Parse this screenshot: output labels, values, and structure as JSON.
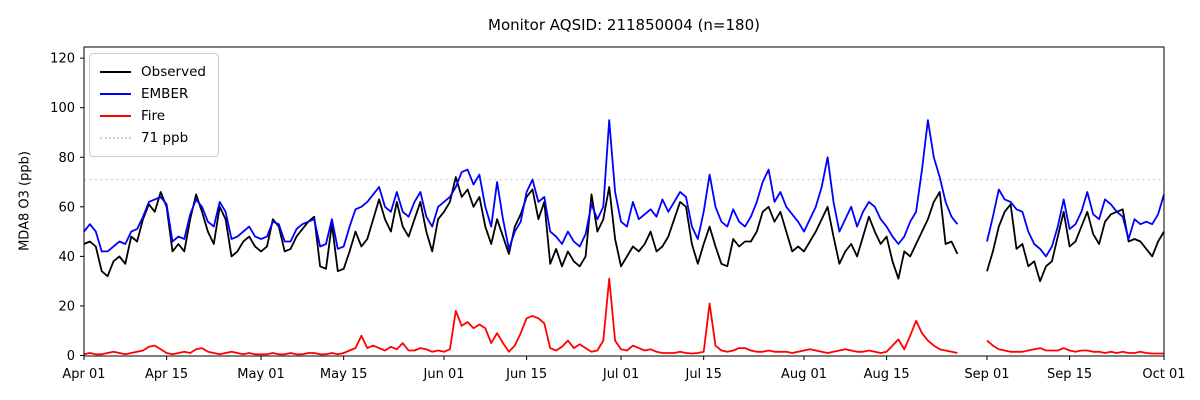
{
  "title": "Monitor AQSID: 211850004 (n=180)",
  "ylabel": "MDA8 O3 (ppb)",
  "legend": {
    "position": "upper left",
    "items": [
      {
        "label": "Observed",
        "color": "#000000",
        "style": "solid"
      },
      {
        "label": "EMBER",
        "color": "#0000ff",
        "style": "solid"
      },
      {
        "label": "Fire",
        "color": "#ff0000",
        "style": "solid"
      },
      {
        "label": "71 ppb",
        "color": "#d3d3d3",
        "style": "dotted"
      }
    ]
  },
  "chart_data": {
    "type": "line",
    "title": "Monitor AQSID: 211850004 (n=180)",
    "xlabel": "",
    "ylabel": "MDA8 O3 (ppb)",
    "grid": false,
    "background": "#ffffff",
    "n_points": 180,
    "x_unit": "day index from Apr 01",
    "x_range_days": [
      0,
      183
    ],
    "x_ticks": [
      {
        "label": "Apr 01",
        "day": 0
      },
      {
        "label": "Apr 15",
        "day": 14
      },
      {
        "label": "May 01",
        "day": 30
      },
      {
        "label": "May 15",
        "day": 44
      },
      {
        "label": "Jun 01",
        "day": 61
      },
      {
        "label": "Jun 15",
        "day": 75
      },
      {
        "label": "Jul 01",
        "day": 91
      },
      {
        "label": "Jul 15",
        "day": 105
      },
      {
        "label": "Aug 01",
        "day": 122
      },
      {
        "label": "Aug 15",
        "day": 136
      },
      {
        "label": "Sep 01",
        "day": 153
      },
      {
        "label": "Sep 15",
        "day": 167
      },
      {
        "label": "Oct 01",
        "day": 183
      }
    ],
    "y_ticks": [
      0,
      20,
      40,
      60,
      80,
      100,
      120
    ],
    "ylim": [
      -0.2,
      124.5
    ],
    "threshold": {
      "label": "71 ppb",
      "value": 71,
      "color": "#d3d3d3",
      "style": "dotted"
    },
    "data_gap": "Aug 28 - Aug 31 (no data, lines broken)",
    "series": [
      {
        "name": "Observed",
        "color": "#000000",
        "values": [
          45,
          46,
          44,
          34,
          32,
          38,
          40,
          37,
          48,
          46,
          55,
          61,
          58,
          66,
          60,
          42,
          45,
          42,
          55,
          65,
          58,
          50,
          45,
          60,
          55,
          40,
          42,
          46,
          48,
          44,
          42,
          44,
          55,
          52,
          42,
          43,
          48,
          51,
          54,
          56,
          36,
          35,
          53,
          34,
          35,
          42,
          50,
          44,
          47,
          55,
          63,
          55,
          50,
          62,
          52,
          48,
          55,
          62,
          50,
          42,
          55,
          58,
          62,
          72,
          64,
          67,
          60,
          64,
          52,
          45,
          55,
          48,
          41,
          52,
          57,
          64,
          67,
          55,
          62,
          37,
          43,
          36,
          42,
          38,
          36,
          40,
          65,
          50,
          55,
          68,
          47,
          36,
          40,
          44,
          42,
          45,
          50,
          42,
          44,
          48,
          55,
          62,
          60,
          45,
          37,
          45,
          52,
          44,
          37,
          36,
          47,
          44,
          46,
          46,
          50,
          58,
          60,
          54,
          58,
          50,
          42,
          44,
          42,
          46,
          50,
          55,
          60,
          48,
          37,
          42,
          45,
          40,
          48,
          56,
          50,
          45,
          48,
          38,
          31,
          42,
          40,
          45,
          50,
          55,
          62,
          66,
          45,
          46,
          41,
          null,
          null,
          null,
          null,
          34,
          42,
          52,
          58,
          61,
          43,
          45,
          36,
          38,
          30,
          36,
          38,
          48,
          58,
          44,
          46,
          52,
          58,
          49,
          45,
          54,
          57,
          58,
          59,
          46,
          47,
          46,
          43,
          40,
          46,
          50
        ]
      },
      {
        "name": "EMBER",
        "color": "#0000ff",
        "values": [
          50,
          53,
          50,
          42,
          42,
          44,
          46,
          45,
          50,
          51,
          56,
          62,
          63,
          64,
          61,
          46,
          48,
          47,
          57,
          63,
          60,
          54,
          52,
          62,
          58,
          47,
          48,
          50,
          52,
          48,
          47,
          48,
          54,
          53,
          46,
          46,
          51,
          53,
          54,
          55,
          44,
          45,
          55,
          43,
          44,
          52,
          59,
          60,
          62,
          65,
          68,
          60,
          58,
          66,
          58,
          56,
          62,
          66,
          56,
          52,
          60,
          62,
          64,
          68,
          74,
          75,
          69,
          73,
          60,
          52,
          70,
          55,
          43,
          50,
          54,
          66,
          71,
          62,
          64,
          50,
          48,
          45,
          50,
          46,
          44,
          49,
          61,
          55,
          60,
          95,
          66,
          54,
          52,
          62,
          55,
          57,
          59,
          56,
          63,
          58,
          62,
          66,
          64,
          52,
          47,
          58,
          73,
          60,
          54,
          52,
          59,
          54,
          52,
          56,
          62,
          70,
          75,
          62,
          66,
          60,
          57,
          54,
          50,
          55,
          60,
          68,
          80,
          62,
          50,
          55,
          60,
          52,
          58,
          62,
          60,
          55,
          52,
          48,
          45,
          48,
          54,
          58,
          75,
          95,
          80,
          72,
          62,
          56,
          53,
          null,
          null,
          null,
          null,
          46,
          56,
          67,
          63,
          62,
          59,
          58,
          50,
          45,
          43,
          40,
          44,
          52,
          63,
          51,
          53,
          58,
          66,
          57,
          55,
          63,
          61,
          58,
          56,
          47,
          55,
          53,
          54,
          53,
          57,
          65
        ]
      },
      {
        "name": "Fire",
        "color": "#ff0000",
        "values": [
          0.5,
          1,
          0.5,
          0.5,
          1,
          1.5,
          1,
          0.5,
          1,
          1.5,
          2,
          3.5,
          4,
          2.5,
          1,
          0.5,
          1,
          1.5,
          1,
          2.5,
          3,
          1.5,
          1,
          0.5,
          1,
          1.5,
          1,
          0.5,
          1,
          0.5,
          0.5,
          0.5,
          1,
          0.5,
          0.5,
          1,
          0.5,
          0.5,
          1,
          1,
          0.5,
          0.5,
          1,
          0.5,
          1,
          2,
          3,
          8,
          3,
          4,
          3,
          2,
          3.5,
          2.5,
          5,
          2,
          2,
          3,
          2.5,
          1.5,
          2,
          1.5,
          2.5,
          18,
          12,
          13.5,
          11,
          12.5,
          11,
          5,
          9,
          5,
          1.5,
          4,
          9,
          15,
          16,
          15,
          13,
          3,
          2,
          3.5,
          6,
          3,
          4.5,
          3,
          1.5,
          2,
          6,
          31,
          6,
          2.5,
          2,
          4,
          3,
          2,
          2.5,
          1.5,
          1,
          1,
          1,
          1.5,
          1,
          0.8,
          1,
          1.5,
          21,
          4,
          2,
          1.5,
          2,
          3,
          3,
          2,
          1.5,
          1.5,
          2,
          1.5,
          1.5,
          1.5,
          1,
          1.5,
          2,
          2.5,
          2,
          1.5,
          1,
          1.5,
          2,
          2.5,
          2,
          1.5,
          1.5,
          2,
          1.5,
          1,
          1.5,
          4,
          6.5,
          2.5,
          8,
          14,
          9,
          6,
          4,
          2.5,
          2,
          1.5,
          1,
          null,
          null,
          null,
          null,
          6,
          4,
          2.5,
          2,
          1.5,
          1.5,
          1.5,
          2,
          2.5,
          3,
          2,
          2,
          2,
          3,
          2,
          1.5,
          2,
          2,
          1.5,
          1.5,
          1,
          1.5,
          1,
          1.5,
          1,
          1,
          1.5,
          1,
          0.8,
          0.8,
          0.8
        ]
      }
    ]
  }
}
